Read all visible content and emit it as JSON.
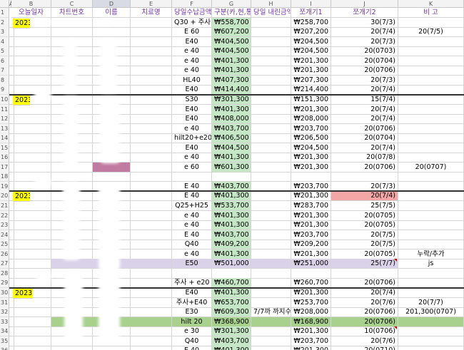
{
  "columns": [
    "A",
    "B",
    "C",
    "D",
    "E",
    "F",
    "G",
    "H",
    "I",
    "J",
    "K"
  ],
  "row_numbers": [
    "1",
    "2",
    "3",
    "4",
    "5",
    "6",
    "7",
    "8",
    "9",
    "10",
    "11",
    "12",
    "13",
    "14",
    "15",
    "16",
    "17",
    "18",
    "19",
    "20",
    "21",
    "22",
    "23",
    "24",
    "25",
    "26",
    "27",
    "28",
    "29",
    "30",
    "31",
    "32",
    "33",
    "34",
    "35",
    "36"
  ],
  "headers": {
    "b": "오늘일자",
    "c": "차트번호",
    "d": "이름",
    "e": "치료명",
    "f": "당일수납금액",
    "g": "구분(카,현,통)",
    "h": "당일 내린금액",
    "i": "쪼개기1",
    "j": "쪼개기2",
    "k": "비 고"
  },
  "date_labels": [
    "2023",
    "2023",
    "2023",
    "2023"
  ],
  "rows": [
    {
      "e": "Q30 + 주사",
      "f": "₩558,700",
      "g": "",
      "h": "₩258,700",
      "i": "30(7/3)",
      "j": ""
    },
    {
      "e": "E 60",
      "f": "₩607,200",
      "g": "",
      "h": "₩207,200",
      "i": "20(7/4)",
      "j": "20(7/5)"
    },
    {
      "e": "E40",
      "f": "₩404,500",
      "g": "",
      "h": "₩204,500",
      "i": "20(7/3)",
      "j": ""
    },
    {
      "e": "e 40",
      "f": "₩404,500",
      "g": "",
      "h": "₩204,500",
      "i": "20(0703)",
      "j": ""
    },
    {
      "e": "e 40",
      "f": "₩401,300",
      "g": "",
      "h": "₩201,300",
      "i": "20(0704)",
      "j": ""
    },
    {
      "e": "e 40",
      "f": "₩401,300",
      "g": "",
      "h": "₩201,300",
      "i": "20(0706)",
      "j": ""
    },
    {
      "e": "HL40",
      "f": "₩407,300",
      "g": "",
      "h": "₩207,300",
      "i": "20(7/3)",
      "j": ""
    },
    {
      "e": "E40",
      "f": "₩414,400",
      "g": "",
      "h": "₩214,400",
      "i": "20(7/4)",
      "j": ""
    },
    {
      "e": "S30",
      "f": "₩301,300",
      "g": "",
      "h": "₩151,300",
      "i": "15(7/4)",
      "j": ""
    },
    {
      "e": "E40",
      "f": "₩401,300",
      "g": "",
      "h": "₩201,300",
      "i": "20(7/4)",
      "j": ""
    },
    {
      "e": "E40",
      "f": "₩408,000",
      "g": "",
      "h": "₩208,000",
      "i": "20(7/4)",
      "j": ""
    },
    {
      "e": "e 40",
      "f": "₩403,700",
      "g": "",
      "h": "₩203,700",
      "i": "20(0706)",
      "j": ""
    },
    {
      "e": "hilt20+e20",
      "f": "₩406,500",
      "g": "",
      "h": "₩206,500",
      "i": "20(0704)",
      "j": ""
    },
    {
      "e": "E40",
      "f": "₩404,500",
      "g": "",
      "h": "₩204,500",
      "i": "20(7/4)",
      "j": ""
    },
    {
      "e": "e 40",
      "f": "₩401,300",
      "g": "",
      "h": "₩201,300",
      "i": "20(07/8)",
      "j": ""
    },
    {
      "e": "e 60",
      "f": "₩601,300",
      "g": "",
      "h": "₩201,300",
      "i": "20(0706)",
      "j": "20(0707)"
    },
    {
      "e": "",
      "f": "",
      "g": "",
      "h": "",
      "i": "",
      "j": ""
    },
    {
      "e": "E 40",
      "f": "₩403,700",
      "g": "",
      "h": "₩203,700",
      "i": "20(7/3)",
      "j": ""
    },
    {
      "e": "E 40",
      "f": "₩401,300",
      "g": "",
      "h": "₩201,300",
      "i": "20(7/4)",
      "j": ""
    },
    {
      "e": "Q25+H25",
      "f": "₩533,700",
      "g": "",
      "h": "₩283,700",
      "i": "25(7/5)",
      "j": ""
    },
    {
      "e": "e 40",
      "f": "₩401,300",
      "g": "",
      "h": "₩201,300",
      "i": "20(0705)",
      "j": ""
    },
    {
      "e": "e 40",
      "f": "₩401,300",
      "g": "",
      "h": "₩201,300",
      "i": "20(0705)",
      "j": ""
    },
    {
      "e": "E 40",
      "f": "₩403,700",
      "g": "",
      "h": "₩203,700",
      "i": "20(7/5)",
      "j": ""
    },
    {
      "e": "Q40",
      "f": "₩409,200",
      "g": "",
      "h": "₩209,200",
      "i": "20(7/5)",
      "j": ""
    },
    {
      "e": "e 40",
      "f": "₩401,300",
      "g": "",
      "h": "₩201,300",
      "i": "20(0705)",
      "j": "누락/추가"
    },
    {
      "e": "E50",
      "f": "₩501,000",
      "g": "",
      "h": "₩251,000",
      "i": "25(7/7)",
      "j": "js"
    },
    {
      "e": "",
      "f": "",
      "g": "",
      "h": "",
      "i": "",
      "j": ""
    },
    {
      "e": "주사 + e20",
      "f": "₩460,700",
      "g": "",
      "h": "₩260,700",
      "i": "20(0706)",
      "j": ""
    },
    {
      "e": "E40",
      "f": "₩401,300",
      "g": "",
      "h": "₩201,300",
      "i": "20(7/4)",
      "j": ""
    },
    {
      "e": "주사+E40",
      "f": "₩653,700",
      "g": "",
      "h": "₩253,700",
      "i": "20(7/6)",
      "j": "20(7/7)"
    },
    {
      "e": "E30",
      "f": "₩609,300",
      "g": "7/7까 까지수납",
      "h": "₩208,000",
      "i": "20(0706)",
      "j": "201,300(0707)"
    },
    {
      "e": "hilt 20",
      "f": "₩368,900",
      "g": "",
      "h": "₩168,900",
      "i": "20(0706)",
      "j": ""
    },
    {
      "e": "e 30",
      "f": "₩301,300",
      "g": "",
      "h": "₩201,300",
      "i": "10(0706)",
      "j": ""
    },
    {
      "e": "Q40",
      "f": "₩403,700",
      "g": "",
      "h": "₩203,700",
      "i": "20(7/6)",
      "j": ""
    },
    {
      "e": "E 40",
      "f": "₩401,300",
      "g": "",
      "h": "₩201,300",
      "i": "20(0710)",
      "j": ""
    }
  ],
  "colors": {
    "header_text": "#7030a0",
    "date_highlight": "#ffff00",
    "amount_fill": "#c6e7c6",
    "row33_fill": "#a9d18e",
    "row27_fill": "#d9d2e9",
    "alert_fill": "#f4a6a6",
    "name_fill": "#c27ba0"
  }
}
